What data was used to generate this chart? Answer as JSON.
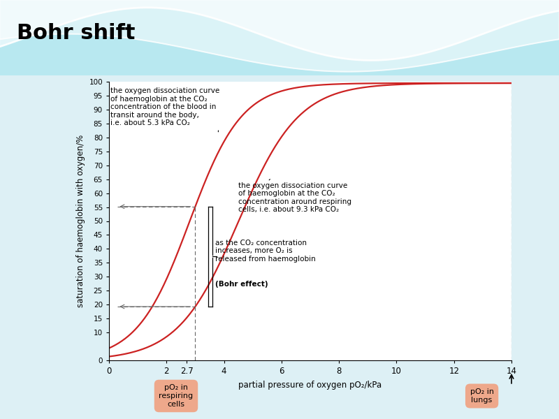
{
  "title": "Bohr shift",
  "curve1_label": "the oxygen dissociation curve\nof haemoglobin at the CO₂\nconcentration of the blood in\ntransit around the body,\ni.e. about 5.3 kPa CO₂",
  "curve2_label": "the oxygen dissociation curve\nof haemoglobin at the CO₂\nconcentration around respiring\ncells, i.e. about 9.3 kPa CO₂",
  "bohr_label_part1": "as the CO₂ concentration\nincreases, more O₂ is\nreleased from haemoglobin\n(",
  "bohr_label_bold": "Bohr effect",
  "bohr_label_part2": ")",
  "xlabel": "partial pressure of oxygen pO₂/kPa",
  "ylabel": "saturation of haemoglobin with oxygen/%",
  "xlim": [
    0,
    14
  ],
  "ylim": [
    0,
    100
  ],
  "curve_color": "#cc2222",
  "dashed_color": "#666666",
  "vline_x": 3.0,
  "label1_pO2_bubble": "pO₂ in\nrespiring\ncells",
  "label2_pO2_bubble": "pO₂ in\nlungs",
  "bubble_color": "#f0a080",
  "bg_white": "#ffffff",
  "bg_slide": "#ddf0f5"
}
